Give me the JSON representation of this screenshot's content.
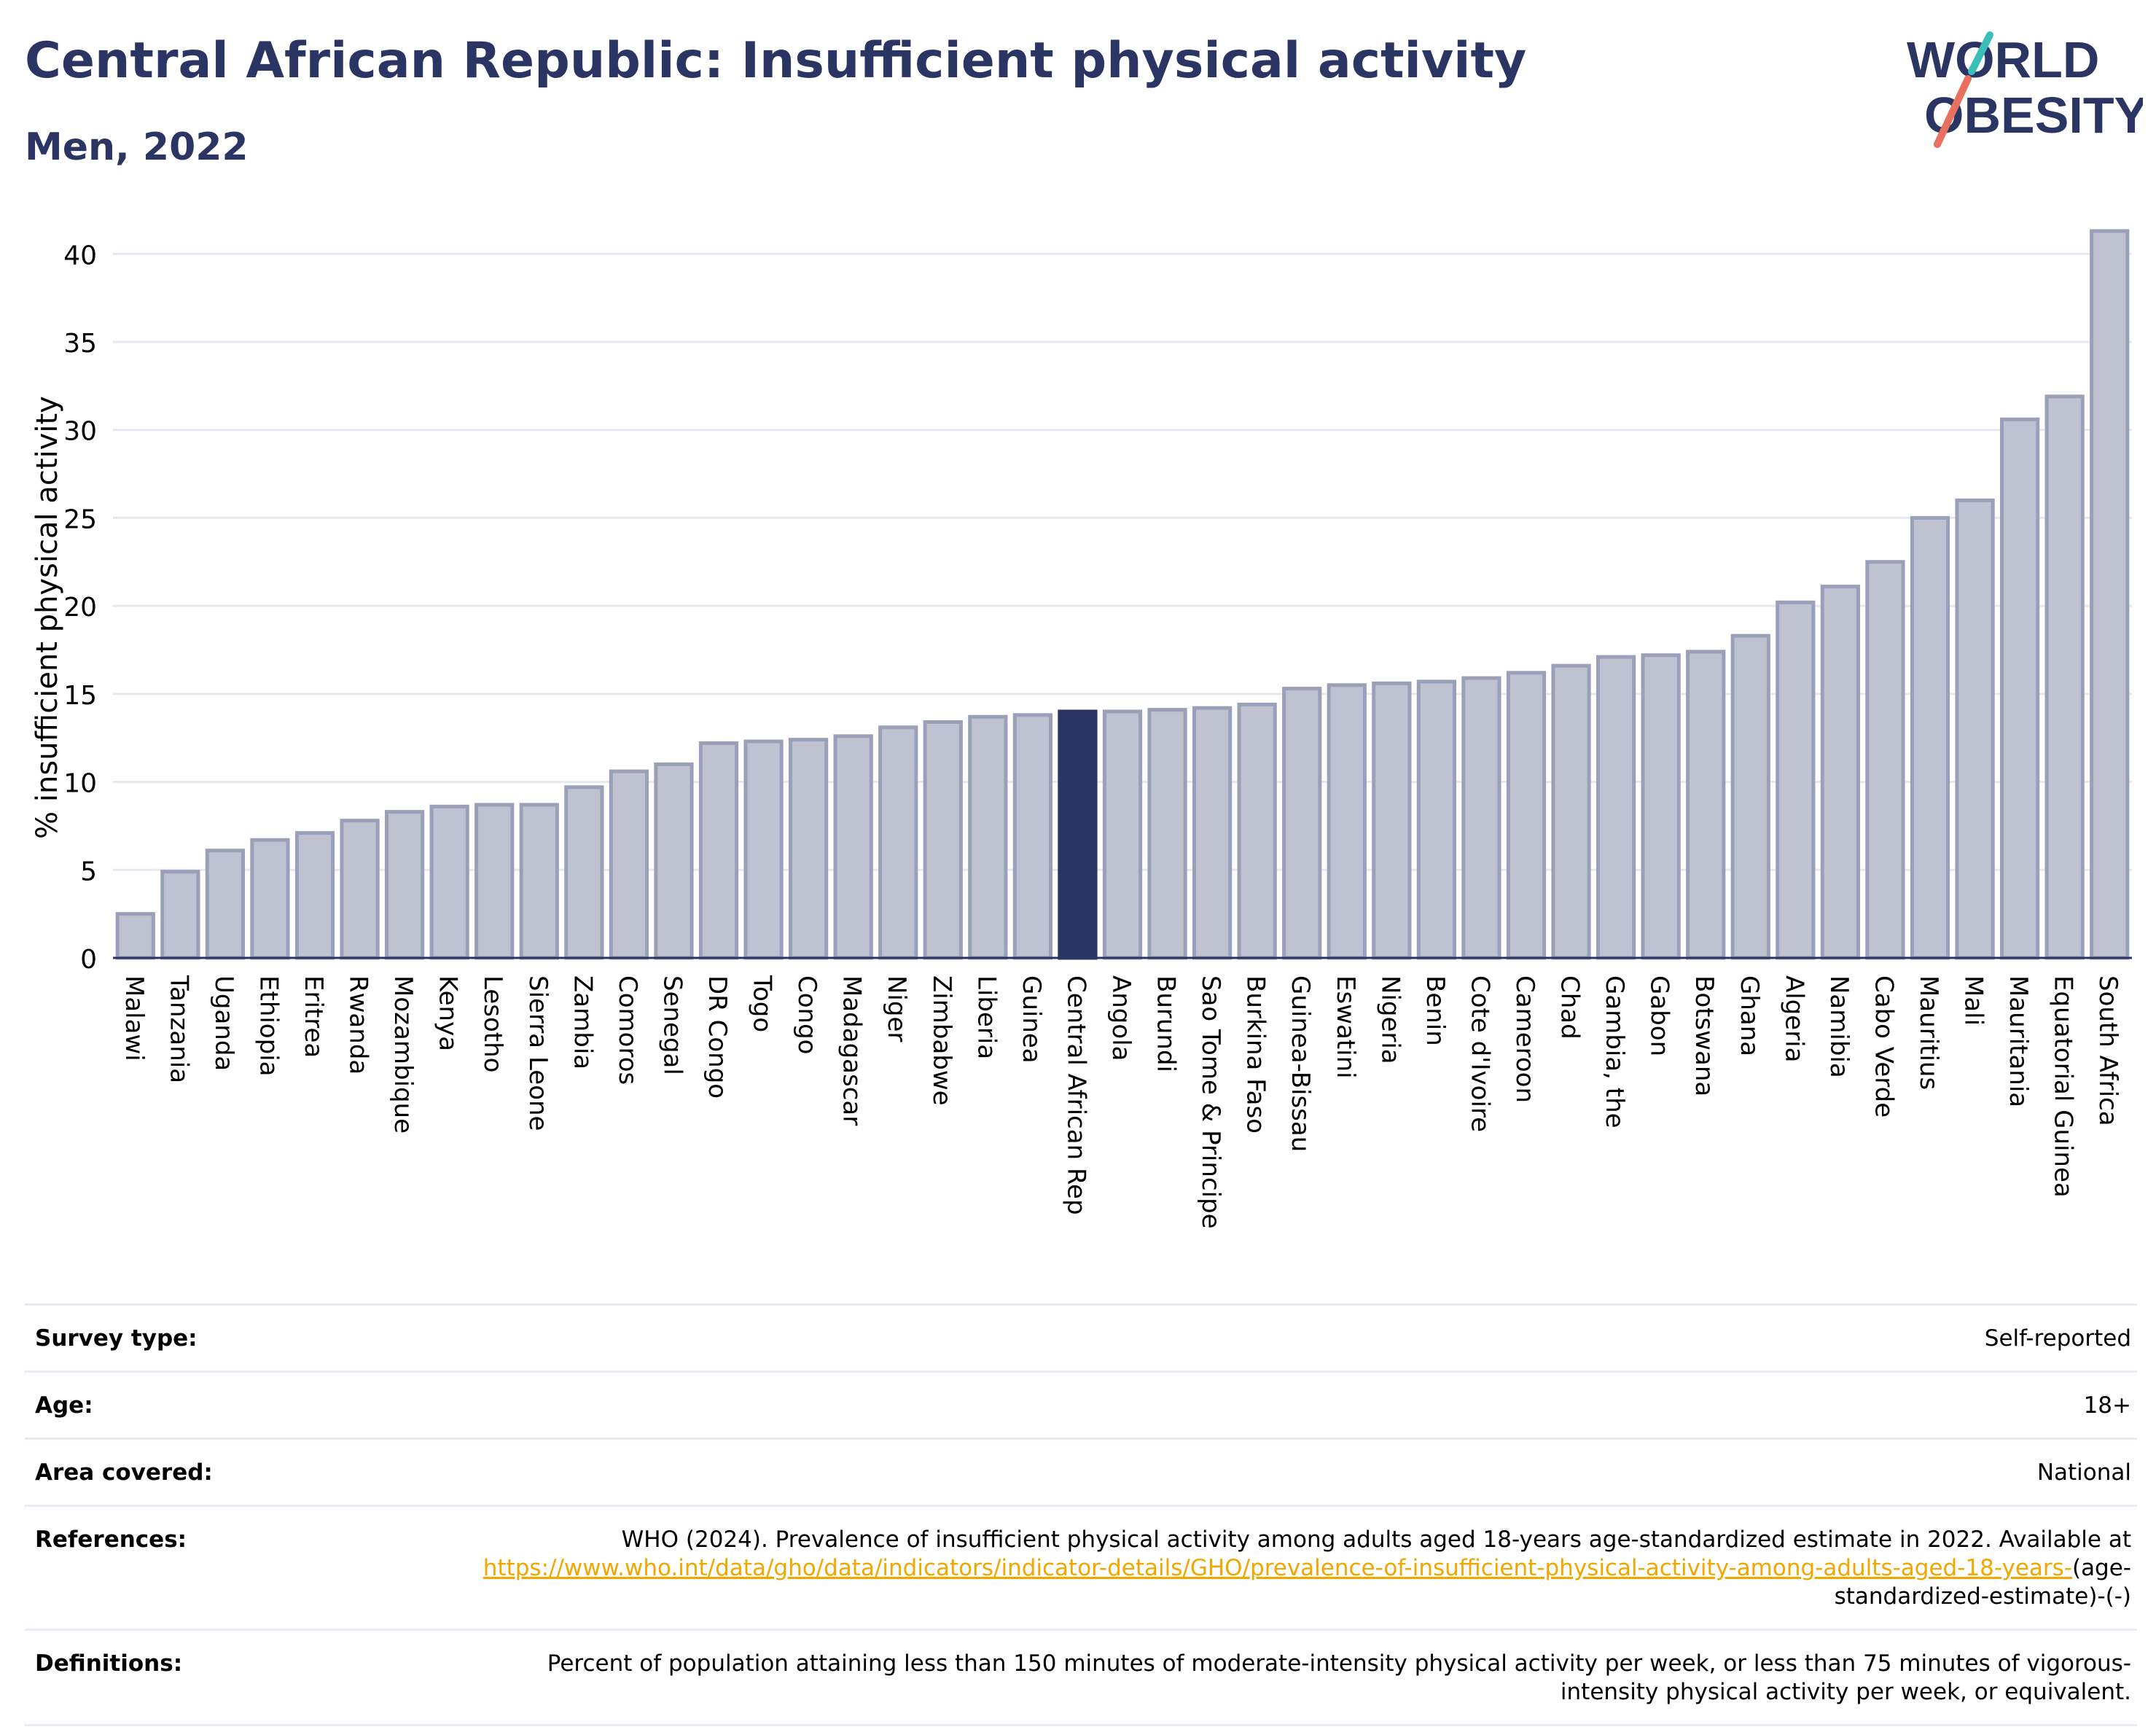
{
  "header": {
    "title": "Central African Republic: Insufficient physical activity",
    "subtitle": "Men, 2022"
  },
  "logo": {
    "line1": "WORLD",
    "line2": "OBESITY",
    "accent_teal": "#3bbfb9",
    "accent_coral": "#e8705f"
  },
  "colors": {
    "bar": "#bfc3d1",
    "bar_border": "#9aa0b8",
    "highlight": "#2b3563",
    "grid": "#e6e8ef",
    "text": "#2b3563"
  },
  "chart_data": {
    "type": "bar",
    "title": "Central African Republic: Insufficient physical activity",
    "subtitle": "Men, 2022",
    "ylabel": "% insufficient physical activity",
    "xlabel": "",
    "ylim": [
      0,
      42
    ],
    "yticks": [
      0,
      5,
      10,
      15,
      20,
      25,
      30,
      35,
      40
    ],
    "grid": true,
    "highlight": "Central African Rep",
    "categories": [
      "Malawi",
      "Tanzania",
      "Uganda",
      "Ethiopia",
      "Eritrea",
      "Rwanda",
      "Mozambique",
      "Kenya",
      "Lesotho",
      "Sierra Leone",
      "Zambia",
      "Comoros",
      "Senegal",
      "DR Congo",
      "Togo",
      "Congo",
      "Madagascar",
      "Niger",
      "Zimbabwe",
      "Liberia",
      "Guinea",
      "Central African Rep",
      "Angola",
      "Burundi",
      "Sao Tome & Principe",
      "Burkina Faso",
      "Guinea-Bissau",
      "Eswatini",
      "Nigeria",
      "Benin",
      "Cote d'Ivoire",
      "Cameroon",
      "Chad",
      "Gambia, the",
      "Gabon",
      "Botswana",
      "Ghana",
      "Algeria",
      "Namibia",
      "Cabo Verde",
      "Mauritius",
      "Mali",
      "Mauritania",
      "Equatorial Guinea",
      "South Africa"
    ],
    "values": [
      2.5,
      4.9,
      6.1,
      6.7,
      7.1,
      7.8,
      8.3,
      8.6,
      8.7,
      8.7,
      9.7,
      10.6,
      11.0,
      12.2,
      12.3,
      12.4,
      12.6,
      13.1,
      13.4,
      13.7,
      13.8,
      14.0,
      14.0,
      14.1,
      14.2,
      14.4,
      15.3,
      15.5,
      15.6,
      15.7,
      15.9,
      16.2,
      16.6,
      17.1,
      17.2,
      17.4,
      18.3,
      20.2,
      21.1,
      22.5,
      25.0,
      26.0,
      30.6,
      31.9,
      41.3
    ]
  },
  "meta": {
    "survey_type": {
      "label": "Survey type:",
      "value": "Self-reported"
    },
    "age": {
      "label": "Age:",
      "value": "18+"
    },
    "area": {
      "label": "Area covered:",
      "value": "National"
    },
    "references": {
      "label": "References:",
      "text": "WHO (2024). Prevalence of insufficient physical activity among adults aged 18-years age-standardized estimate in 2022. Available at",
      "link": "https://www.who.int/data/gho/data/indicators/indicator-details/GHO/prevalence-of-insufficient-physical-activity-among-adults-aged-18-years-",
      "suffix": "(age-standardized-estimate)-(-)"
    },
    "definitions": {
      "label": "Definitions:",
      "value": "Percent of population attaining less than 150 minutes of moderate-intensity physical activity per week, or less than 75 minutes of vigorous-intensity physical activity per week, or equivalent."
    }
  }
}
